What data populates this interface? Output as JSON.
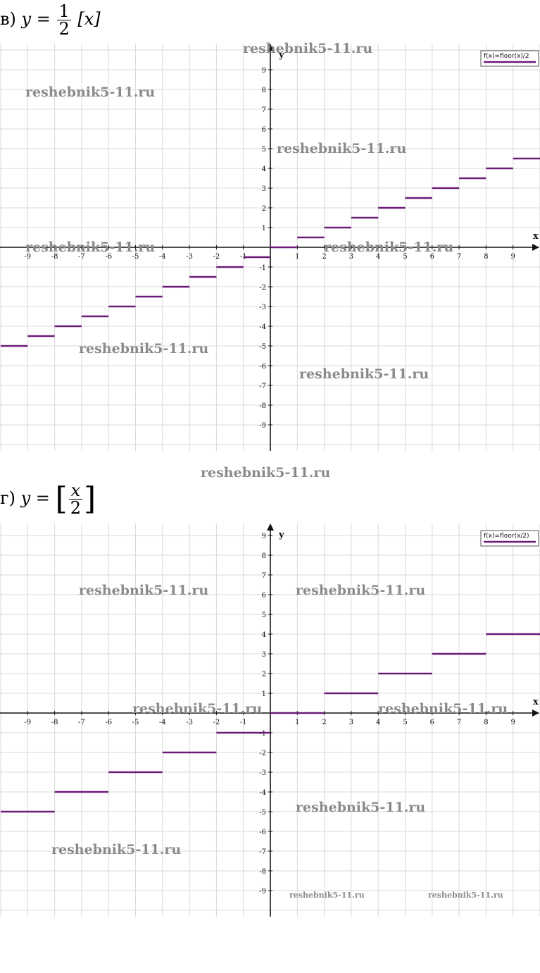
{
  "colors": {
    "series": "#6b1a78",
    "grid": "#d9d9d9",
    "axis": "#111111",
    "watermark": "#8a8a8a"
  },
  "panels": [
    {
      "label": "в)",
      "formula": {
        "lhs": "y",
        "eq": "=",
        "num": "1",
        "den": "2",
        "arg": "[x]"
      },
      "watermarks": [
        "reshebnik5-11.ru",
        "reshebnik5-11.ru",
        "reshebnik5-11.ru",
        "reshebnik5-11.ru",
        "reshebnik5-11.ru",
        "reshebnik5-11.ru",
        "reshebnik5-11.ru",
        "reshebnik5-11.ru"
      ]
    },
    {
      "label": "г)",
      "formula": {
        "lhs": "y",
        "eq": "=",
        "num": "x",
        "den": "2"
      },
      "watermarks": [
        "reshebnik5-11.ru",
        "reshebnik5-11.ru",
        "reshebnik5-11.ru",
        "reshebnik5-11.ru",
        "reshebnik5-11.ru",
        "reshebnik5-11.ru",
        "reshebnik5-11.ru",
        "reshebnik5-11.ru"
      ]
    }
  ],
  "chart_data": [
    {
      "type": "line",
      "legend": "f(x)=floor(x)/2",
      "legend_position": "top-right",
      "xlabel": "x",
      "ylabel": "y",
      "xlim": [
        -10,
        10
      ],
      "ylim": [
        -10,
        10
      ],
      "x_ticks": [
        -9,
        -8,
        -7,
        -6,
        -5,
        -4,
        -3,
        -2,
        -1,
        1,
        2,
        3,
        4,
        5,
        6,
        7,
        8,
        9
      ],
      "y_ticks": [
        9,
        8,
        7,
        6,
        5,
        4,
        3,
        2,
        1,
        -1,
        -2,
        -3,
        -4,
        -5,
        -6,
        -7,
        -8,
        -9
      ],
      "grid": true,
      "segments": [
        {
          "x": [
            -10,
            -9
          ],
          "y": -5
        },
        {
          "x": [
            -9,
            -8
          ],
          "y": -4.5
        },
        {
          "x": [
            -8,
            -7
          ],
          "y": -4
        },
        {
          "x": [
            -7,
            -6
          ],
          "y": -3.5
        },
        {
          "x": [
            -6,
            -5
          ],
          "y": -3
        },
        {
          "x": [
            -5,
            -4
          ],
          "y": -2.5
        },
        {
          "x": [
            -4,
            -3
          ],
          "y": -2
        },
        {
          "x": [
            -3,
            -2
          ],
          "y": -1.5
        },
        {
          "x": [
            -2,
            -1
          ],
          "y": -1
        },
        {
          "x": [
            -1,
            0
          ],
          "y": -0.5
        },
        {
          "x": [
            0,
            1
          ],
          "y": 0
        },
        {
          "x": [
            1,
            2
          ],
          "y": 0.5
        },
        {
          "x": [
            2,
            3
          ],
          "y": 1
        },
        {
          "x": [
            3,
            4
          ],
          "y": 1.5
        },
        {
          "x": [
            4,
            5
          ],
          "y": 2
        },
        {
          "x": [
            5,
            6
          ],
          "y": 2.5
        },
        {
          "x": [
            6,
            7
          ],
          "y": 3
        },
        {
          "x": [
            7,
            8
          ],
          "y": 3.5
        },
        {
          "x": [
            8,
            9
          ],
          "y": 4
        },
        {
          "x": [
            9,
            10
          ],
          "y": 4.5
        }
      ]
    },
    {
      "type": "line",
      "legend": "f(x)=floor(x/2)",
      "legend_position": "top-right",
      "xlabel": "x",
      "ylabel": "y",
      "xlim": [
        -10,
        10
      ],
      "ylim": [
        -10,
        10
      ],
      "x_ticks": [
        -9,
        -8,
        -7,
        -6,
        -5,
        -4,
        -3,
        -2,
        -1,
        1,
        2,
        3,
        4,
        5,
        6,
        7,
        8,
        9
      ],
      "y_ticks": [
        9,
        8,
        7,
        6,
        5,
        4,
        3,
        2,
        1,
        -1,
        -2,
        -3,
        -4,
        -5,
        -6,
        -7,
        -8,
        -9
      ],
      "grid": true,
      "segments": [
        {
          "x": [
            -10,
            -8
          ],
          "y": -5
        },
        {
          "x": [
            -8,
            -6
          ],
          "y": -4
        },
        {
          "x": [
            -6,
            -4
          ],
          "y": -3
        },
        {
          "x": [
            -4,
            -2
          ],
          "y": -2
        },
        {
          "x": [
            -2,
            0
          ],
          "y": -1
        },
        {
          "x": [
            0,
            2
          ],
          "y": 0
        },
        {
          "x": [
            2,
            4
          ],
          "y": 1
        },
        {
          "x": [
            4,
            6
          ],
          "y": 2
        },
        {
          "x": [
            6,
            8
          ],
          "y": 3
        },
        {
          "x": [
            8,
            10
          ],
          "y": 4
        }
      ]
    }
  ]
}
